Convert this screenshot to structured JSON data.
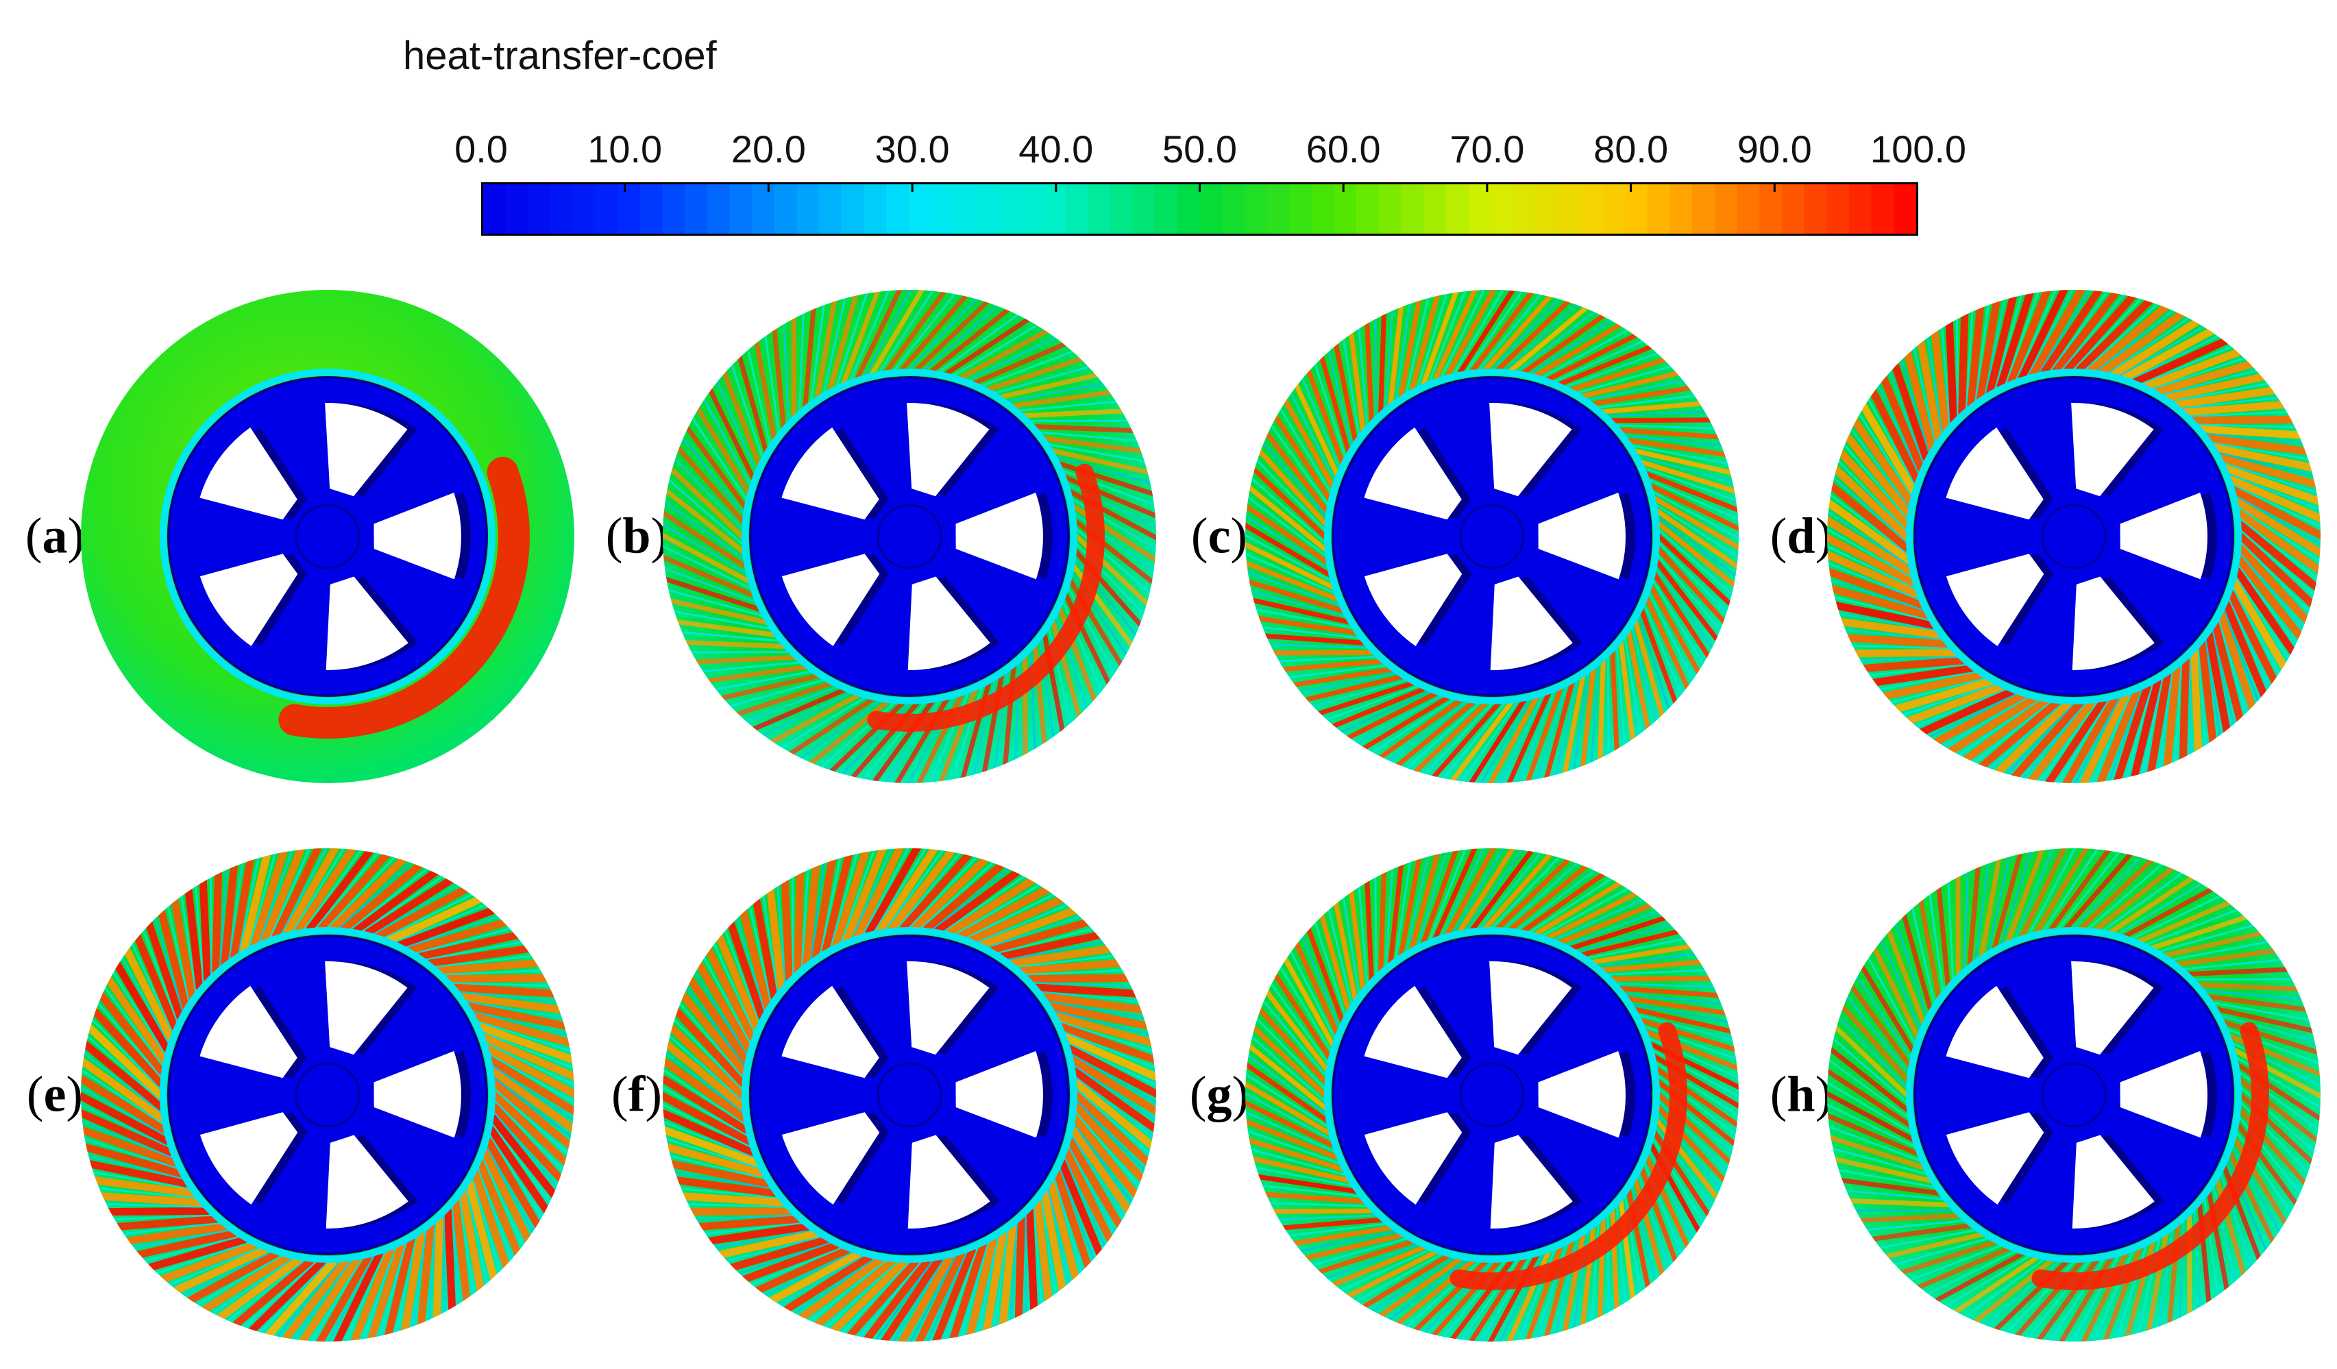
{
  "colorbar": {
    "title": "heat-transfer-coef",
    "ticks": [
      "0.0",
      "10.0",
      "20.0",
      "30.0",
      "40.0",
      "50.0",
      "60.0",
      "70.0",
      "80.0",
      "90.0",
      "100.0"
    ],
    "range": [
      0,
      100
    ],
    "colors": {
      "blue": "#0000ff",
      "cyan": "#00ffff",
      "green": "#00ff00",
      "yellow": "#ffff00",
      "red": "#ff0000"
    }
  },
  "panels": [
    {
      "label": "a",
      "pattern": "smooth"
    },
    {
      "label": "b",
      "pattern": "streaked-light"
    },
    {
      "label": "c",
      "pattern": "streaked"
    },
    {
      "label": "d",
      "pattern": "streaked-dense"
    },
    {
      "label": "e",
      "pattern": "streaked-dense"
    },
    {
      "label": "f",
      "pattern": "streaked-dense"
    },
    {
      "label": "g",
      "pattern": "streaked"
    },
    {
      "label": "h",
      "pattern": "streaked-light"
    }
  ],
  "chart_data": {
    "type": "heatmap",
    "title": "heat-transfer-coef",
    "colorbar_range": [
      0,
      100
    ],
    "colorbar_ticks": [
      0,
      10,
      20,
      30,
      40,
      50,
      60,
      70,
      80,
      90,
      100
    ],
    "panel_labels": [
      "(a)",
      "(b)",
      "(c)",
      "(d)",
      "(e)",
      "(f)",
      "(g)",
      "(h)"
    ]
  }
}
